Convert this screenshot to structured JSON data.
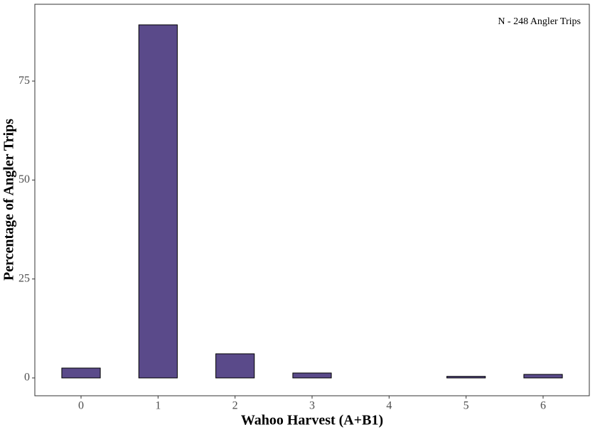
{
  "chart_data": {
    "type": "bar",
    "x_label": "Wahoo Harvest (A+B1)",
    "y_label": "Percentage of Angler Trips",
    "annotation": "N - 248 Angler Trips",
    "categories": [
      "0",
      "1",
      "2",
      "3",
      "4",
      "5",
      "6"
    ],
    "values": [
      2.5,
      89.2,
      6.1,
      1.25,
      0,
      0.4,
      0.9
    ],
    "color": "#5a4a8a",
    "ylim": [
      -4.5,
      94.4
    ],
    "yticks": [
      0,
      25,
      50,
      75
    ],
    "grid": false
  }
}
